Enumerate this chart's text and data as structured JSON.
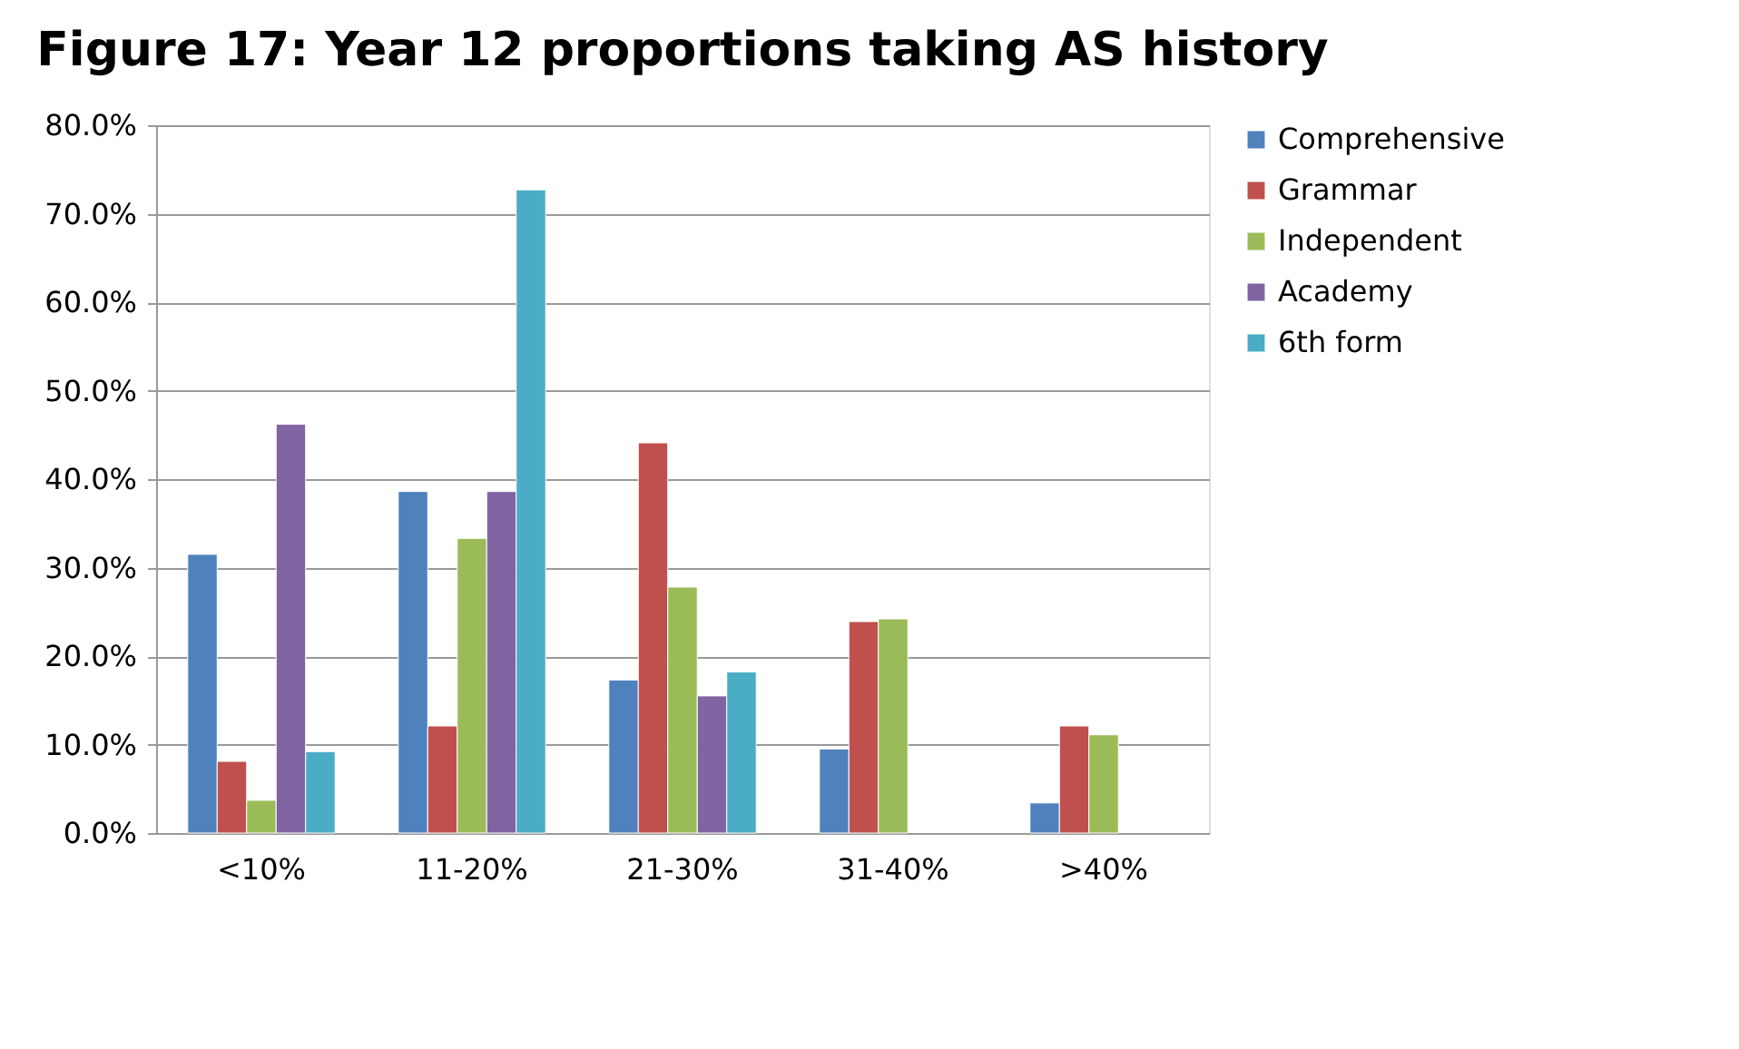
{
  "chart_data": {
    "type": "bar",
    "title": "Figure 17: Year 12 proportions taking AS history",
    "categories": [
      "<10%",
      "11-20%",
      "21-30%",
      "31-40%",
      ">40%"
    ],
    "series": [
      {
        "name": "Comprehensive",
        "color": "#4f81bd",
        "values": [
          31.5,
          38.6,
          17.3,
          9.5,
          3.4
        ]
      },
      {
        "name": "Grammar",
        "color": "#c0504d",
        "values": [
          8.1,
          12.1,
          44.1,
          23.9,
          12.1
        ]
      },
      {
        "name": "Independent",
        "color": "#9bbb59",
        "values": [
          3.7,
          33.3,
          27.8,
          24.2,
          11.1
        ]
      },
      {
        "name": "Academy",
        "color": "#8064a2",
        "values": [
          46.2,
          38.6,
          15.5,
          null,
          null
        ]
      },
      {
        "name": "6th form",
        "color": "#4bacc6",
        "values": [
          9.2,
          72.7,
          18.2,
          null,
          null
        ]
      }
    ],
    "ylim": [
      0,
      80
    ],
    "yticks": [
      {
        "value": 0,
        "label": "0.0%"
      },
      {
        "value": 10,
        "label": "10.0%"
      },
      {
        "value": 20,
        "label": "20.0%"
      },
      {
        "value": 30,
        "label": "30.0%"
      },
      {
        "value": 40,
        "label": "40.0%"
      },
      {
        "value": 50,
        "label": "50.0%"
      },
      {
        "value": 60,
        "label": "60.0%"
      },
      {
        "value": 70,
        "label": "70.0%"
      },
      {
        "value": 80,
        "label": "80.0%"
      }
    ],
    "grid": "y",
    "legend": "right"
  }
}
